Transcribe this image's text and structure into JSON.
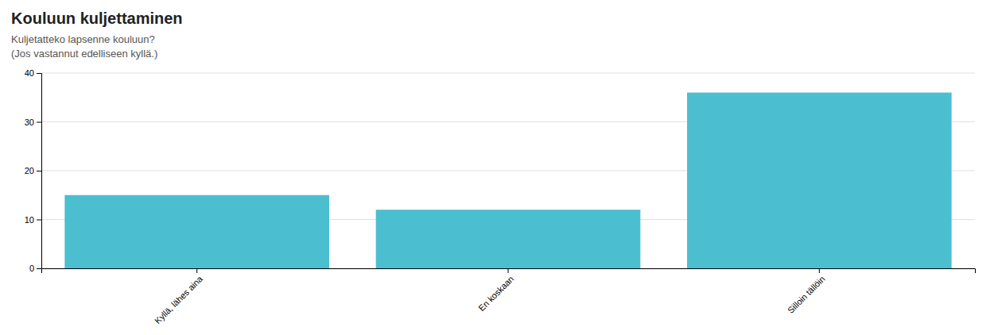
{
  "chart_data": {
    "type": "bar",
    "title": "Kouluun kuljettaminen",
    "subtitle": [
      "Kuljetatteko lapsenne kouluun?",
      "(Jos vastannut edelliseen kyllä.)"
    ],
    "categories": [
      "Kyllä, lähes aina",
      "En koskaan",
      "Silloin tällöin"
    ],
    "values": [
      15,
      12,
      36
    ],
    "color": "#4BBFCF",
    "ylim": [
      0,
      40
    ],
    "yticks": [
      0,
      10,
      20,
      30,
      40
    ],
    "grid": true
  }
}
